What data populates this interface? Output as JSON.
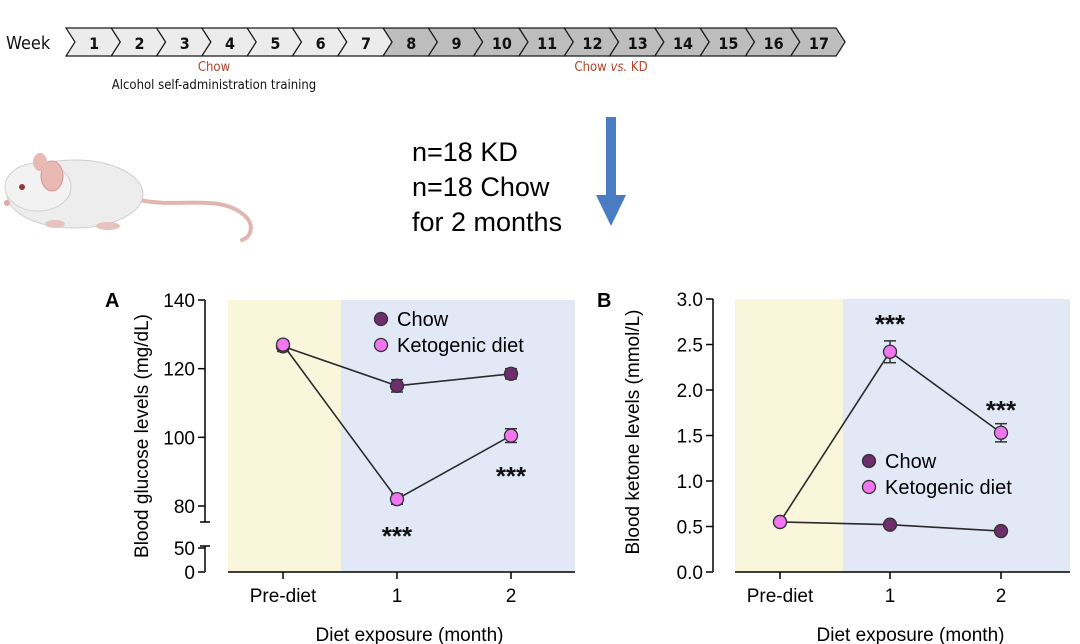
{
  "timeline": {
    "label": "Week",
    "weeks": [
      "1",
      "2",
      "3",
      "4",
      "5",
      "6",
      "7",
      "8",
      "9",
      "10",
      "11",
      "12",
      "13",
      "14",
      "15",
      "16",
      "17"
    ],
    "colors": {
      "light": "#ececec",
      "dark": "#bdbdbd",
      "stroke": "#1a1a1a"
    },
    "phase1_label": "Chow",
    "phase1_sublabel": "Alcohol self-administration training",
    "phase2_label_a": "Chow ",
    "phase2_label_b": "vs.",
    "phase2_label_c": " KD",
    "phase_label_color": "#b5442a"
  },
  "design": {
    "lines": [
      "n=18 KD",
      "n=18 Chow",
      "for 2 months"
    ],
    "arrow_color": "#4a7cc4"
  },
  "chart_data": [
    {
      "panel": "A",
      "type": "line",
      "xlabel": "Diet exposure (month)",
      "ylabel": "Blood glucose levels (mg/dL)",
      "categories": [
        "Pre-diet",
        "1",
        "2"
      ],
      "y_ticks_upper": [
        80,
        100,
        120,
        140
      ],
      "y_ticks_lower": [
        0,
        50
      ],
      "y_axis_break": true,
      "ylim_upper": [
        77,
        140
      ],
      "ylim_lower": [
        0,
        50
      ],
      "legend_position": "top-center",
      "shading": [
        {
          "from": "Pre-diet",
          "color": "#faf6dc"
        },
        {
          "from": "1",
          "to": "2",
          "color": "#e3e8f7"
        }
      ],
      "series": [
        {
          "name": "Chow",
          "color": "#6e2d6d",
          "values": [
            126.5,
            115,
            118.5
          ],
          "errors": [
            1.5,
            1.8,
            1.5
          ]
        },
        {
          "name": "Ketogenic diet",
          "color": "#f176f0",
          "values": [
            127,
            82,
            100.5
          ],
          "errors": [
            1.2,
            1.5,
            2.0
          ]
        }
      ],
      "annotations": [
        {
          "text": "***",
          "category": "1",
          "position": "below"
        },
        {
          "text": "***",
          "category": "2",
          "position": "below"
        }
      ]
    },
    {
      "panel": "B",
      "type": "line",
      "xlabel": "Diet exposure (month)",
      "ylabel": "Blood ketone levels (mmol/L)",
      "categories": [
        "Pre-diet",
        "1",
        "2"
      ],
      "y_ticks": [
        0.0,
        0.5,
        1.0,
        1.5,
        2.0,
        2.5,
        3.0
      ],
      "y_tick_labels": [
        "0.0",
        "0.5",
        "1.0",
        "1.5",
        "2.0",
        "2.5",
        "3.0"
      ],
      "ylim": [
        0,
        3.0
      ],
      "legend_position": "center-right",
      "shading": [
        {
          "from": "Pre-diet",
          "color": "#faf6dc"
        },
        {
          "from": "1",
          "to": "2",
          "color": "#e3e8f7"
        }
      ],
      "series": [
        {
          "name": "Chow",
          "color": "#6e2d6d",
          "values": [
            0.55,
            0.52,
            0.45
          ],
          "errors": [
            0.03,
            0.03,
            0.03
          ]
        },
        {
          "name": "Ketogenic diet",
          "color": "#f176f0",
          "values": [
            0.55,
            2.42,
            1.53
          ],
          "errors": [
            0.03,
            0.12,
            0.1
          ]
        }
      ],
      "annotations": [
        {
          "text": "***",
          "category": "1",
          "position": "above"
        },
        {
          "text": "***",
          "category": "2",
          "position": "above"
        }
      ]
    }
  ]
}
